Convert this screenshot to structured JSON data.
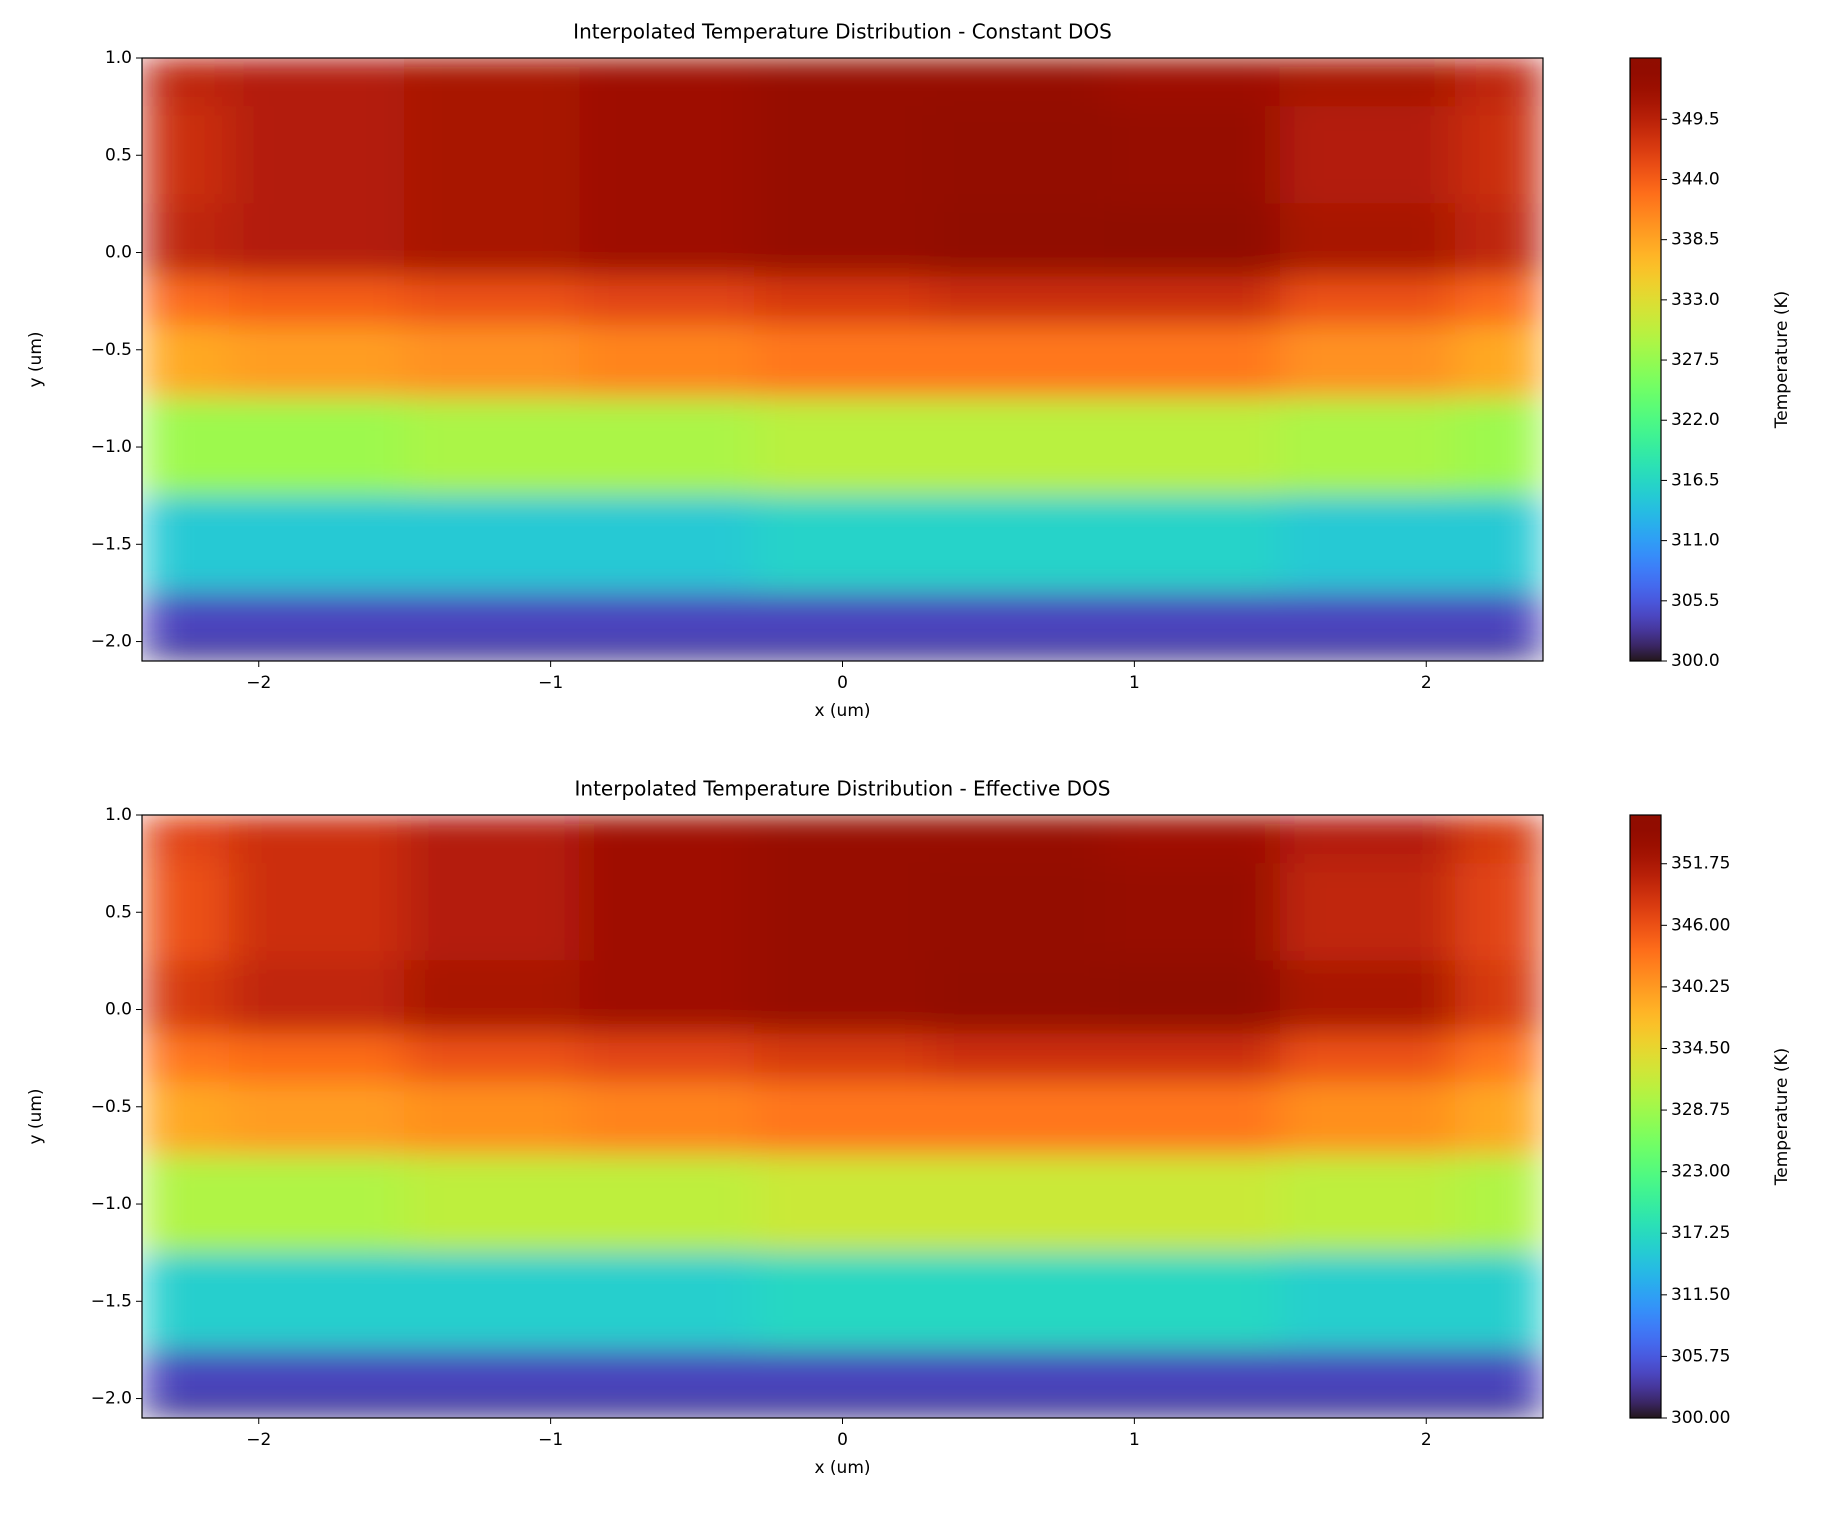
{
  "chart_data": [
    {
      "type": "heatmap",
      "title": "Interpolated Temperature Distribution - Constant DOS",
      "xlabel": "x (um)",
      "ylabel": "y (um)",
      "colormap": "turbo",
      "x": [
        -2.4,
        -1.8,
        -1.2,
        -0.6,
        0,
        0.6,
        1.2,
        1.8,
        2.4
      ],
      "y": [
        1.0,
        0.5,
        0.0,
        -0.25,
        -0.5,
        -1.0,
        -1.5,
        -2.0,
        -2.1
      ],
      "z": [
        [
          349,
          350,
          351,
          352,
          353,
          353,
          352,
          351,
          349
        ],
        [
          348,
          350,
          351,
          352,
          353,
          353.5,
          353,
          350,
          348
        ],
        [
          349,
          350,
          351,
          352,
          353,
          354,
          355,
          351,
          349
        ],
        [
          343,
          344,
          345,
          346,
          347,
          348,
          348,
          345,
          343
        ],
        [
          338,
          339,
          340,
          341,
          342,
          342,
          342,
          340,
          338
        ],
        [
          328,
          328,
          329,
          329,
          330,
          330,
          330,
          329,
          328
        ],
        [
          315,
          315,
          315,
          315,
          316,
          316,
          316,
          315,
          315
        ],
        [
          304,
          304,
          304,
          304,
          304,
          304,
          304,
          304,
          304
        ],
        [
          301,
          301,
          301,
          301,
          301,
          301,
          301,
          301,
          301
        ]
      ],
      "xlim": [
        -2.4,
        2.4
      ],
      "ylim": [
        -2.1,
        1.0
      ],
      "xticks": [
        {
          "value": -2,
          "label": "−2"
        },
        {
          "value": -1,
          "label": "−1"
        },
        0,
        1,
        2
      ],
      "yticks": [
        {
          "value": -2.0,
          "label": "−2.0"
        },
        {
          "value": -1.5,
          "label": "−1.5"
        },
        {
          "value": -1.0,
          "label": "−1.0"
        },
        {
          "value": -0.5,
          "label": "−0.5"
        },
        {
          "value": 0.0,
          "label": "0.0"
        },
        0.5,
        {
          "value": 1.0,
          "label": "1.0"
        }
      ],
      "colorbar": {
        "label": "Temperature (K)",
        "clim": [
          300,
          355.1
        ],
        "ticks": [
          {
            "value": 300,
            "label": "300.0"
          },
          305.5,
          {
            "value": 311,
            "label": "311.0"
          },
          316.5,
          {
            "value": 322,
            "label": "322.0"
          },
          327.5,
          {
            "value": 333,
            "label": "333.0"
          },
          338.5,
          {
            "value": 344,
            "label": "344.0"
          },
          349.5
        ]
      }
    },
    {
      "type": "heatmap",
      "title": "Interpolated Temperature Distribution - Effective DOS",
      "xlabel": "x (um)",
      "ylabel": "y (um)",
      "colormap": "turbo",
      "x": [
        -2.4,
        -1.8,
        -1.2,
        -0.6,
        0,
        0.6,
        1.2,
        1.8,
        2.4
      ],
      "y": [
        1.0,
        0.5,
        0.0,
        -0.25,
        -0.5,
        -1.0,
        -1.5,
        -2.0,
        -2.1
      ],
      "z": [
        [
          347,
          349,
          351,
          353,
          354,
          354,
          353,
          351,
          348
        ],
        [
          346,
          349,
          351,
          353,
          354,
          354.5,
          354,
          350,
          347
        ],
        [
          348,
          350,
          352,
          353,
          354,
          355,
          356,
          352,
          348
        ],
        [
          343,
          344,
          346,
          347,
          348,
          349,
          349,
          346,
          343
        ],
        [
          339,
          340,
          341,
          342,
          343,
          343,
          343,
          341,
          339
        ],
        [
          330,
          330,
          331,
          331,
          332,
          332,
          332,
          331,
          330
        ],
        [
          316,
          316,
          316,
          316,
          317,
          317,
          317,
          316,
          316
        ],
        [
          304,
          304,
          304,
          304,
          304,
          304,
          304,
          304,
          304
        ],
        [
          301,
          301,
          301,
          301,
          301,
          301,
          301,
          301,
          301
        ]
      ],
      "xlim": [
        -2.4,
        2.4
      ],
      "ylim": [
        -2.1,
        1.0
      ],
      "xticks": [
        {
          "value": -2,
          "label": "−2"
        },
        {
          "value": -1,
          "label": "−1"
        },
        0,
        1,
        2
      ],
      "yticks": [
        {
          "value": -2.0,
          "label": "−2.0"
        },
        {
          "value": -1.5,
          "label": "−1.5"
        },
        {
          "value": -1.0,
          "label": "−1.0"
        },
        {
          "value": -0.5,
          "label": "−0.5"
        },
        {
          "value": 0.0,
          "label": "0.0"
        },
        0.5,
        {
          "value": 1.0,
          "label": "1.0"
        }
      ],
      "colorbar": {
        "label": "Temperature (K)",
        "clim": [
          300,
          356.3
        ],
        "ticks": [
          {
            "value": 300,
            "label": "300.00"
          },
          305.75,
          {
            "value": 311.5,
            "label": "311.50"
          },
          317.25,
          {
            "value": 323,
            "label": "323.00"
          },
          328.75,
          {
            "value": 334.5,
            "label": "334.50"
          },
          340.25,
          {
            "value": 346,
            "label": "346.00"
          },
          351.75
        ]
      }
    }
  ]
}
